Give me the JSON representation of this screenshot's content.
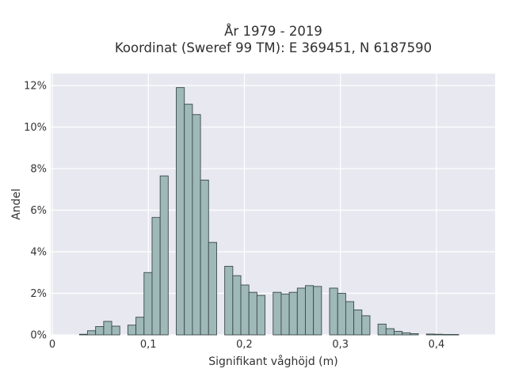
{
  "chart_data": {
    "type": "bar",
    "title_line1": "År 1979 - 2019",
    "title_line2": "Koordinat (Sweref 99 TM): E 369451, N 6187590",
    "xlabel": "Signifikant våghöjd (m)",
    "ylabel": "Andel",
    "x_range": [
      0,
      0.46
    ],
    "y_range": [
      0,
      12.6
    ],
    "x_ticks": [
      {
        "value": 0,
        "label": "0"
      },
      {
        "value": 0.1,
        "label": "0,1"
      },
      {
        "value": 0.2,
        "label": "0,2"
      },
      {
        "value": 0.3,
        "label": "0,3"
      },
      {
        "value": 0.4,
        "label": "0,4"
      }
    ],
    "y_ticks": [
      {
        "value": 0,
        "label": "0%"
      },
      {
        "value": 2,
        "label": "2%"
      },
      {
        "value": 4,
        "label": "4%"
      },
      {
        "value": 6,
        "label": "6%"
      },
      {
        "value": 8,
        "label": "8%"
      },
      {
        "value": 10,
        "label": "10%"
      },
      {
        "value": 12,
        "label": "12%"
      }
    ],
    "grid": true,
    "bar_width": 0.0084,
    "bar_color": "#9fb8b8",
    "bar_edge": "#3a4a4a",
    "background_color": "#e8e8f0",
    "bars": [
      {
        "x": 0.0325,
        "y": 0.03
      },
      {
        "x": 0.0409,
        "y": 0.2
      },
      {
        "x": 0.0493,
        "y": 0.4
      },
      {
        "x": 0.0577,
        "y": 0.65
      },
      {
        "x": 0.0661,
        "y": 0.42
      },
      {
        "x": 0.0829,
        "y": 0.47
      },
      {
        "x": 0.0913,
        "y": 0.85
      },
      {
        "x": 0.0997,
        "y": 3.0
      },
      {
        "x": 0.1081,
        "y": 5.65
      },
      {
        "x": 0.1165,
        "y": 7.65
      },
      {
        "x": 0.1333,
        "y": 11.9
      },
      {
        "x": 0.1417,
        "y": 11.1
      },
      {
        "x": 0.1501,
        "y": 10.6
      },
      {
        "x": 0.1585,
        "y": 7.45
      },
      {
        "x": 0.1669,
        "y": 4.45
      },
      {
        "x": 0.1837,
        "y": 3.3
      },
      {
        "x": 0.1921,
        "y": 2.85
      },
      {
        "x": 0.2005,
        "y": 2.4
      },
      {
        "x": 0.2089,
        "y": 2.05
      },
      {
        "x": 0.2173,
        "y": 1.9
      },
      {
        "x": 0.2341,
        "y": 2.05
      },
      {
        "x": 0.2425,
        "y": 1.97
      },
      {
        "x": 0.2509,
        "y": 2.05
      },
      {
        "x": 0.2593,
        "y": 2.25
      },
      {
        "x": 0.2677,
        "y": 2.37
      },
      {
        "x": 0.2761,
        "y": 2.33
      },
      {
        "x": 0.2929,
        "y": 2.25
      },
      {
        "x": 0.3013,
        "y": 2.0
      },
      {
        "x": 0.3097,
        "y": 1.6
      },
      {
        "x": 0.3181,
        "y": 1.2
      },
      {
        "x": 0.3265,
        "y": 0.92
      },
      {
        "x": 0.3433,
        "y": 0.52
      },
      {
        "x": 0.3517,
        "y": 0.3
      },
      {
        "x": 0.3601,
        "y": 0.17
      },
      {
        "x": 0.3685,
        "y": 0.1
      },
      {
        "x": 0.3769,
        "y": 0.06
      },
      {
        "x": 0.3937,
        "y": 0.04
      },
      {
        "x": 0.4021,
        "y": 0.03
      },
      {
        "x": 0.4105,
        "y": 0.02
      },
      {
        "x": 0.4189,
        "y": 0.02
      }
    ]
  }
}
